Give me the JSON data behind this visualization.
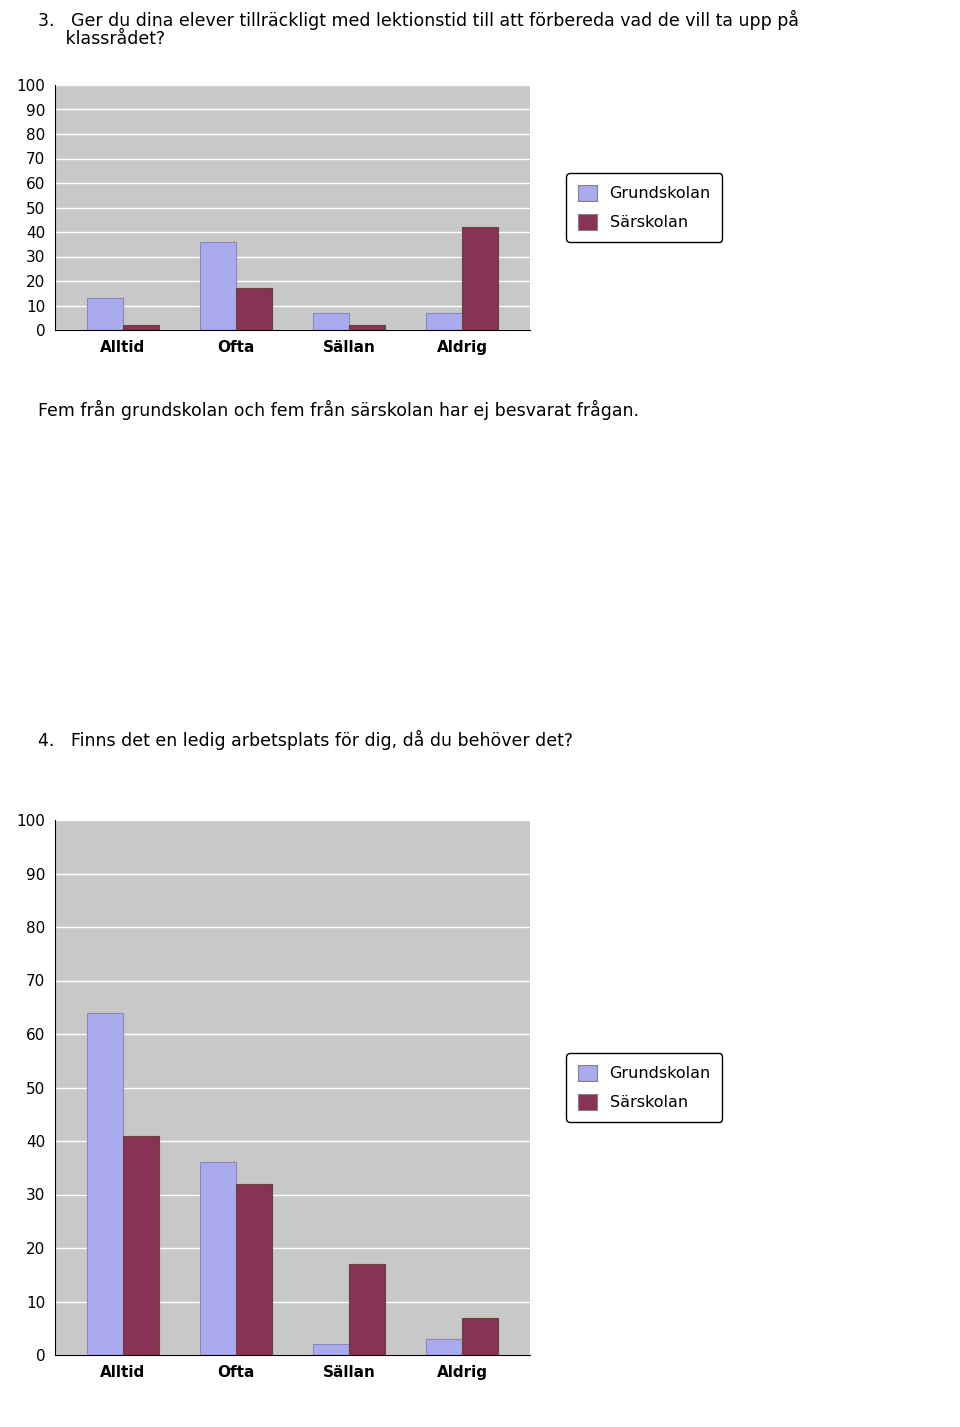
{
  "chart1": {
    "question_line1": "3.   Ger du dina elever tillräckligt med lektionstid till att förbereda vad de vill ta upp på",
    "question_line2": "     klassrådet?",
    "categories": [
      "Alltid",
      "Ofta",
      "Sällan",
      "Aldrig"
    ],
    "grundskolan": [
      13,
      36,
      7,
      7
    ],
    "sarskolan": [
      2,
      17,
      2,
      42
    ],
    "ylim": [
      0,
      100
    ],
    "yticks": [
      0,
      10,
      20,
      30,
      40,
      50,
      60,
      70,
      80,
      90,
      100
    ],
    "note": "Fem från grundskolan och fem från särskolan har ej besvarat frågan."
  },
  "chart2": {
    "question": "4.   Finns det en ledig arbetsplats för dig, då du behöver det?",
    "categories": [
      "Alltid",
      "Ofta",
      "Sällan",
      "Aldrig"
    ],
    "grundskolan": [
      64,
      36,
      2,
      3
    ],
    "sarskolan": [
      41,
      32,
      17,
      7
    ],
    "ylim": [
      0,
      100
    ],
    "yticks": [
      0,
      10,
      20,
      30,
      40,
      50,
      60,
      70,
      80,
      90,
      100
    ]
  },
  "color_grundskolan": "#aaaaee",
  "color_sarskolan": "#883355",
  "bar_width": 0.32,
  "legend_grundskolan": "Grundskolan",
  "legend_sarskolan": "Särskolan",
  "plot_bg_color": "#c8c8c8",
  "figsize": [
    9.6,
    14.27
  ],
  "dpi": 100
}
